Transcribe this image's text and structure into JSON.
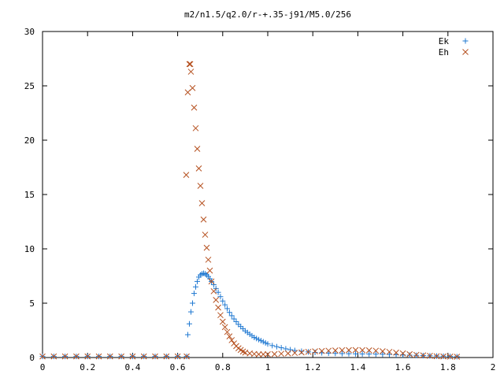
{
  "chart_data": {
    "type": "scatter",
    "title": "m2/n1.5/q2.0/r-+.35-j91/M5.0/256",
    "xlabel": "",
    "ylabel": "",
    "xlim": [
      0,
      2
    ],
    "ylim": [
      0,
      30
    ],
    "xticks": [
      0,
      0.2,
      0.4,
      0.6,
      0.8,
      1,
      1.2,
      1.4,
      1.6,
      1.8,
      2
    ],
    "xtick_labels": [
      "0",
      "0.2",
      "0.4",
      "0.6",
      "0.8",
      "1",
      "1.2",
      "1.4",
      "1.6",
      "1.8",
      "2"
    ],
    "yticks": [
      0,
      5,
      10,
      15,
      20,
      25,
      30
    ],
    "ytick_labels": [
      "0",
      "5",
      "10",
      "15",
      "20",
      "25",
      "30"
    ],
    "grid": false,
    "legend_position": "top-right",
    "series": [
      {
        "name": "Ek",
        "marker": "plus",
        "color": "#1f78d1",
        "points": [
          [
            0.0,
            0.1
          ],
          [
            0.05,
            0.1
          ],
          [
            0.1,
            0.1
          ],
          [
            0.15,
            0.1
          ],
          [
            0.2,
            0.1
          ],
          [
            0.25,
            0.1
          ],
          [
            0.3,
            0.1
          ],
          [
            0.35,
            0.1
          ],
          [
            0.4,
            0.1
          ],
          [
            0.45,
            0.1
          ],
          [
            0.5,
            0.1
          ],
          [
            0.55,
            0.1
          ],
          [
            0.6,
            0.1
          ],
          [
            0.64,
            0.1
          ],
          [
            0.645,
            2.1
          ],
          [
            0.652,
            3.1
          ],
          [
            0.659,
            4.2
          ],
          [
            0.666,
            5.0
          ],
          [
            0.673,
            5.9
          ],
          [
            0.68,
            6.5
          ],
          [
            0.687,
            7.0
          ],
          [
            0.694,
            7.4
          ],
          [
            0.701,
            7.6
          ],
          [
            0.708,
            7.7
          ],
          [
            0.715,
            7.75
          ],
          [
            0.722,
            7.7
          ],
          [
            0.729,
            7.6
          ],
          [
            0.736,
            7.45
          ],
          [
            0.743,
            7.25
          ],
          [
            0.75,
            7.0
          ],
          [
            0.76,
            6.7
          ],
          [
            0.77,
            6.35
          ],
          [
            0.78,
            6.0
          ],
          [
            0.79,
            5.6
          ],
          [
            0.8,
            5.2
          ],
          [
            0.81,
            4.85
          ],
          [
            0.82,
            4.5
          ],
          [
            0.83,
            4.15
          ],
          [
            0.84,
            3.85
          ],
          [
            0.85,
            3.55
          ],
          [
            0.86,
            3.3
          ],
          [
            0.87,
            3.05
          ],
          [
            0.88,
            2.85
          ],
          [
            0.89,
            2.65
          ],
          [
            0.9,
            2.45
          ],
          [
            0.91,
            2.3
          ],
          [
            0.92,
            2.15
          ],
          [
            0.93,
            2.0
          ],
          [
            0.94,
            1.85
          ],
          [
            0.95,
            1.75
          ],
          [
            0.96,
            1.65
          ],
          [
            0.97,
            1.55
          ],
          [
            0.98,
            1.45
          ],
          [
            0.99,
            1.35
          ],
          [
            1.0,
            1.25
          ],
          [
            1.02,
            1.1
          ],
          [
            1.04,
            1.0
          ],
          [
            1.06,
            0.9
          ],
          [
            1.08,
            0.8
          ],
          [
            1.1,
            0.72
          ],
          [
            1.12,
            0.65
          ],
          [
            1.15,
            0.58
          ],
          [
            1.18,
            0.52
          ],
          [
            1.21,
            0.47
          ],
          [
            1.24,
            0.43
          ],
          [
            1.27,
            0.4
          ],
          [
            1.3,
            0.38
          ],
          [
            1.33,
            0.36
          ],
          [
            1.36,
            0.35
          ],
          [
            1.39,
            0.34
          ],
          [
            1.42,
            0.33
          ],
          [
            1.45,
            0.32
          ],
          [
            1.48,
            0.31
          ],
          [
            1.51,
            0.3
          ],
          [
            1.54,
            0.28
          ],
          [
            1.57,
            0.26
          ],
          [
            1.6,
            0.24
          ],
          [
            1.63,
            0.22
          ],
          [
            1.66,
            0.2
          ],
          [
            1.69,
            0.18
          ],
          [
            1.72,
            0.16
          ],
          [
            1.75,
            0.14
          ],
          [
            1.78,
            0.12
          ],
          [
            1.81,
            0.1
          ],
          [
            1.84,
            0.08
          ]
        ]
      },
      {
        "name": "Eh",
        "marker": "cross",
        "color": "#b5501f",
        "points": [
          [
            0.0,
            0.1
          ],
          [
            0.05,
            0.1
          ],
          [
            0.1,
            0.1
          ],
          [
            0.15,
            0.1
          ],
          [
            0.2,
            0.1
          ],
          [
            0.25,
            0.1
          ],
          [
            0.3,
            0.1
          ],
          [
            0.35,
            0.1
          ],
          [
            0.4,
            0.1
          ],
          [
            0.45,
            0.1
          ],
          [
            0.5,
            0.1
          ],
          [
            0.55,
            0.1
          ],
          [
            0.6,
            0.1
          ],
          [
            0.64,
            0.1
          ],
          [
            0.638,
            16.8
          ],
          [
            0.645,
            24.4
          ],
          [
            0.652,
            27.0
          ],
          [
            0.656,
            27.0
          ],
          [
            0.659,
            26.3
          ],
          [
            0.666,
            24.8
          ],
          [
            0.673,
            23.0
          ],
          [
            0.68,
            21.1
          ],
          [
            0.687,
            19.2
          ],
          [
            0.694,
            17.4
          ],
          [
            0.701,
            15.8
          ],
          [
            0.708,
            14.2
          ],
          [
            0.715,
            12.7
          ],
          [
            0.722,
            11.3
          ],
          [
            0.729,
            10.1
          ],
          [
            0.736,
            9.0
          ],
          [
            0.743,
            8.0
          ],
          [
            0.75,
            7.0
          ],
          [
            0.76,
            6.1
          ],
          [
            0.77,
            5.3
          ],
          [
            0.78,
            4.6
          ],
          [
            0.79,
            3.9
          ],
          [
            0.8,
            3.3
          ],
          [
            0.81,
            2.8
          ],
          [
            0.82,
            2.35
          ],
          [
            0.83,
            1.95
          ],
          [
            0.84,
            1.6
          ],
          [
            0.85,
            1.3
          ],
          [
            0.86,
            1.05
          ],
          [
            0.87,
            0.85
          ],
          [
            0.88,
            0.7
          ],
          [
            0.89,
            0.55
          ],
          [
            0.9,
            0.45
          ],
          [
            0.92,
            0.38
          ],
          [
            0.94,
            0.33
          ],
          [
            0.96,
            0.3
          ],
          [
            0.98,
            0.3
          ],
          [
            1.0,
            0.3
          ],
          [
            1.03,
            0.32
          ],
          [
            1.06,
            0.35
          ],
          [
            1.09,
            0.38
          ],
          [
            1.12,
            0.42
          ],
          [
            1.15,
            0.47
          ],
          [
            1.18,
            0.52
          ],
          [
            1.21,
            0.57
          ],
          [
            1.24,
            0.6
          ],
          [
            1.27,
            0.63
          ],
          [
            1.3,
            0.65
          ],
          [
            1.33,
            0.67
          ],
          [
            1.36,
            0.68
          ],
          [
            1.39,
            0.69
          ],
          [
            1.42,
            0.68
          ],
          [
            1.45,
            0.66
          ],
          [
            1.48,
            0.63
          ],
          [
            1.51,
            0.58
          ],
          [
            1.54,
            0.52
          ],
          [
            1.57,
            0.45
          ],
          [
            1.6,
            0.38
          ],
          [
            1.63,
            0.31
          ],
          [
            1.66,
            0.25
          ],
          [
            1.69,
            0.2
          ],
          [
            1.72,
            0.16
          ],
          [
            1.75,
            0.12
          ],
          [
            1.78,
            0.1
          ],
          [
            1.81,
            0.08
          ],
          [
            1.84,
            0.07
          ]
        ]
      }
    ]
  }
}
